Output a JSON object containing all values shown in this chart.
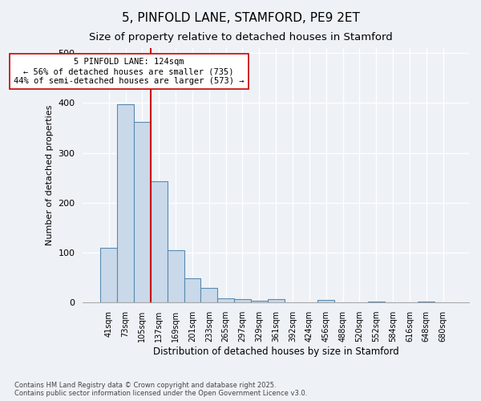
{
  "title1": "5, PINFOLD LANE, STAMFORD, PE9 2ET",
  "title2": "Size of property relative to detached houses in Stamford",
  "xlabel": "Distribution of detached houses by size in Stamford",
  "ylabel": "Number of detached properties",
  "categories": [
    "41sqm",
    "73sqm",
    "105sqm",
    "137sqm",
    "169sqm",
    "201sqm",
    "233sqm",
    "265sqm",
    "297sqm",
    "329sqm",
    "361sqm",
    "392sqm",
    "424sqm",
    "456sqm",
    "488sqm",
    "520sqm",
    "552sqm",
    "584sqm",
    "616sqm",
    "648sqm",
    "680sqm"
  ],
  "values": [
    110,
    397,
    362,
    243,
    105,
    49,
    29,
    9,
    7,
    4,
    6,
    0,
    0,
    5,
    1,
    0,
    2,
    0,
    0,
    2,
    1
  ],
  "bar_color": "#c9d9ea",
  "bar_edge_color": "#5a8ab0",
  "vline_x": 2.5,
  "vline_color": "#cc0000",
  "annotation_text": "5 PINFOLD LANE: 124sqm\n← 56% of detached houses are smaller (735)\n44% of semi-detached houses are larger (573) →",
  "annotation_box_color": "#ffffff",
  "annotation_box_edge_color": "#cc0000",
  "footer_text": "Contains HM Land Registry data © Crown copyright and database right 2025.\nContains public sector information licensed under the Open Government Licence v3.0.",
  "ylim": [
    0,
    510
  ],
  "background_color": "#eef2f7",
  "plot_background_color": "#eef2f7",
  "title_fontsize": 11,
  "subtitle_fontsize": 9.5,
  "grid_color": "#ffffff"
}
